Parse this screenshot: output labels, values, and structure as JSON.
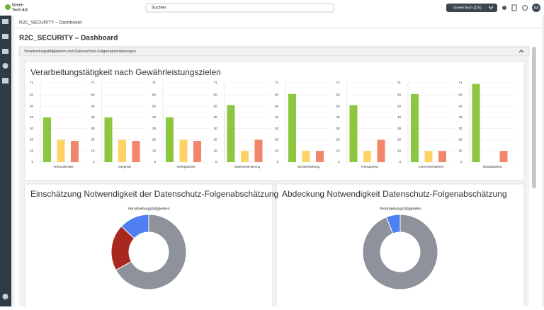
{
  "header": {
    "logo": [
      "Green",
      "Tech AG"
    ],
    "search_placeholder": "Suchen",
    "tenant": "GreenTech (DS)",
    "avatar": "AA"
  },
  "breadcrumb": "R2C_SECURITY – Dashboard",
  "page_title": "R2C_SECURITY – Dashboard",
  "section": "Verarbeitungstätigkeiten und Datenschutz-Folgenabschätzungen",
  "bar_panel_title": "Verarbeitungstätigkeit nach Gewährleistungszielen",
  "chart_data": [
    {
      "type": "bar",
      "categories": [
        "Vertraulichkeit"
      ],
      "series": [
        {
          "color": "#8dc63f",
          "values": [
            40
          ]
        },
        {
          "color": "#fdd365",
          "values": [
            20
          ]
        },
        {
          "color": "#f0876a",
          "values": [
            19
          ]
        }
      ],
      "ylim": [
        0,
        71
      ],
      "yticks": [
        0,
        10,
        20,
        30,
        40,
        50,
        60,
        71
      ],
      "grid": true
    },
    {
      "type": "bar",
      "categories": [
        "Integrität"
      ],
      "series": [
        {
          "color": "#8dc63f",
          "values": [
            40
          ]
        },
        {
          "color": "#fdd365",
          "values": [
            20
          ]
        },
        {
          "color": "#f0876a",
          "values": [
            19
          ]
        }
      ],
      "ylim": [
        0,
        71
      ],
      "yticks": [
        0,
        10,
        20,
        30,
        40,
        50,
        60,
        71
      ],
      "grid": true
    },
    {
      "type": "bar",
      "categories": [
        "Verfügbarkeit"
      ],
      "series": [
        {
          "color": "#8dc63f",
          "values": [
            40
          ]
        },
        {
          "color": "#fdd365",
          "values": [
            20
          ]
        },
        {
          "color": "#f0876a",
          "values": [
            19
          ]
        }
      ],
      "ylim": [
        0,
        71
      ],
      "yticks": [
        0,
        10,
        20,
        30,
        40,
        50,
        60,
        71
      ],
      "grid": true
    },
    {
      "type": "bar",
      "categories": [
        "Datenminimierung"
      ],
      "series": [
        {
          "color": "#8dc63f",
          "values": [
            51
          ]
        },
        {
          "color": "#fdd365",
          "values": [
            10
          ]
        },
        {
          "color": "#f0876a",
          "values": [
            20
          ]
        }
      ],
      "ylim": [
        0,
        71
      ],
      "yticks": [
        0,
        10,
        20,
        30,
        40,
        50,
        60,
        71
      ],
      "grid": true
    },
    {
      "type": "bar",
      "categories": [
        "Nichtverkettung"
      ],
      "series": [
        {
          "color": "#8dc63f",
          "values": [
            61
          ]
        },
        {
          "color": "#fdd365",
          "values": [
            10
          ]
        },
        {
          "color": "#f0876a",
          "values": [
            10
          ]
        }
      ],
      "ylim": [
        0,
        71
      ],
      "yticks": [
        0,
        10,
        20,
        30,
        40,
        50,
        60,
        71
      ],
      "grid": true
    },
    {
      "type": "bar",
      "categories": [
        "Transparenz"
      ],
      "series": [
        {
          "color": "#8dc63f",
          "values": [
            51
          ]
        },
        {
          "color": "#fdd365",
          "values": [
            10
          ]
        },
        {
          "color": "#f0876a",
          "values": [
            20
          ]
        }
      ],
      "ylim": [
        0,
        71
      ],
      "yticks": [
        0,
        10,
        20,
        30,
        40,
        50,
        60,
        71
      ],
      "grid": true
    },
    {
      "type": "bar",
      "categories": [
        "Intervenierbarkeit"
      ],
      "series": [
        {
          "color": "#8dc63f",
          "values": [
            61
          ]
        },
        {
          "color": "#fdd365",
          "values": [
            10
          ]
        },
        {
          "color": "#f0876a",
          "values": [
            10
          ]
        }
      ],
      "ylim": [
        0,
        71
      ],
      "yticks": [
        0,
        10,
        20,
        30,
        40,
        50,
        60,
        71
      ],
      "grid": true
    },
    {
      "type": "bar",
      "categories": [
        "Belastbarkeit"
      ],
      "series": [
        {
          "color": "#8dc63f",
          "values": [
            70
          ]
        },
        {
          "color": "#fdd365",
          "values": [
            0
          ]
        },
        {
          "color": "#f0876a",
          "values": [
            10
          ]
        }
      ],
      "ylim": [
        0,
        71
      ],
      "yticks": [
        0,
        10,
        20,
        30,
        40,
        50,
        60,
        71
      ],
      "grid": true
    },
    {
      "type": "pie",
      "title": "Einschätzung Notwendigkeit der Datenschutz-Folgenabschätzung",
      "subtitle": "Verarbeitungstätigkeiten",
      "values": [
        67,
        20,
        13
      ],
      "colors": [
        "#8e939b",
        "#a8281e",
        "#4f7ff0"
      ]
    },
    {
      "type": "pie",
      "title": "Abdeckung Notwendigkeit Datenschutz-Folgenabschätzung",
      "subtitle": "Verarbeitungstätigkeiten",
      "values": [
        94,
        6
      ],
      "colors": [
        "#8e939b",
        "#4f7ff0"
      ]
    }
  ]
}
